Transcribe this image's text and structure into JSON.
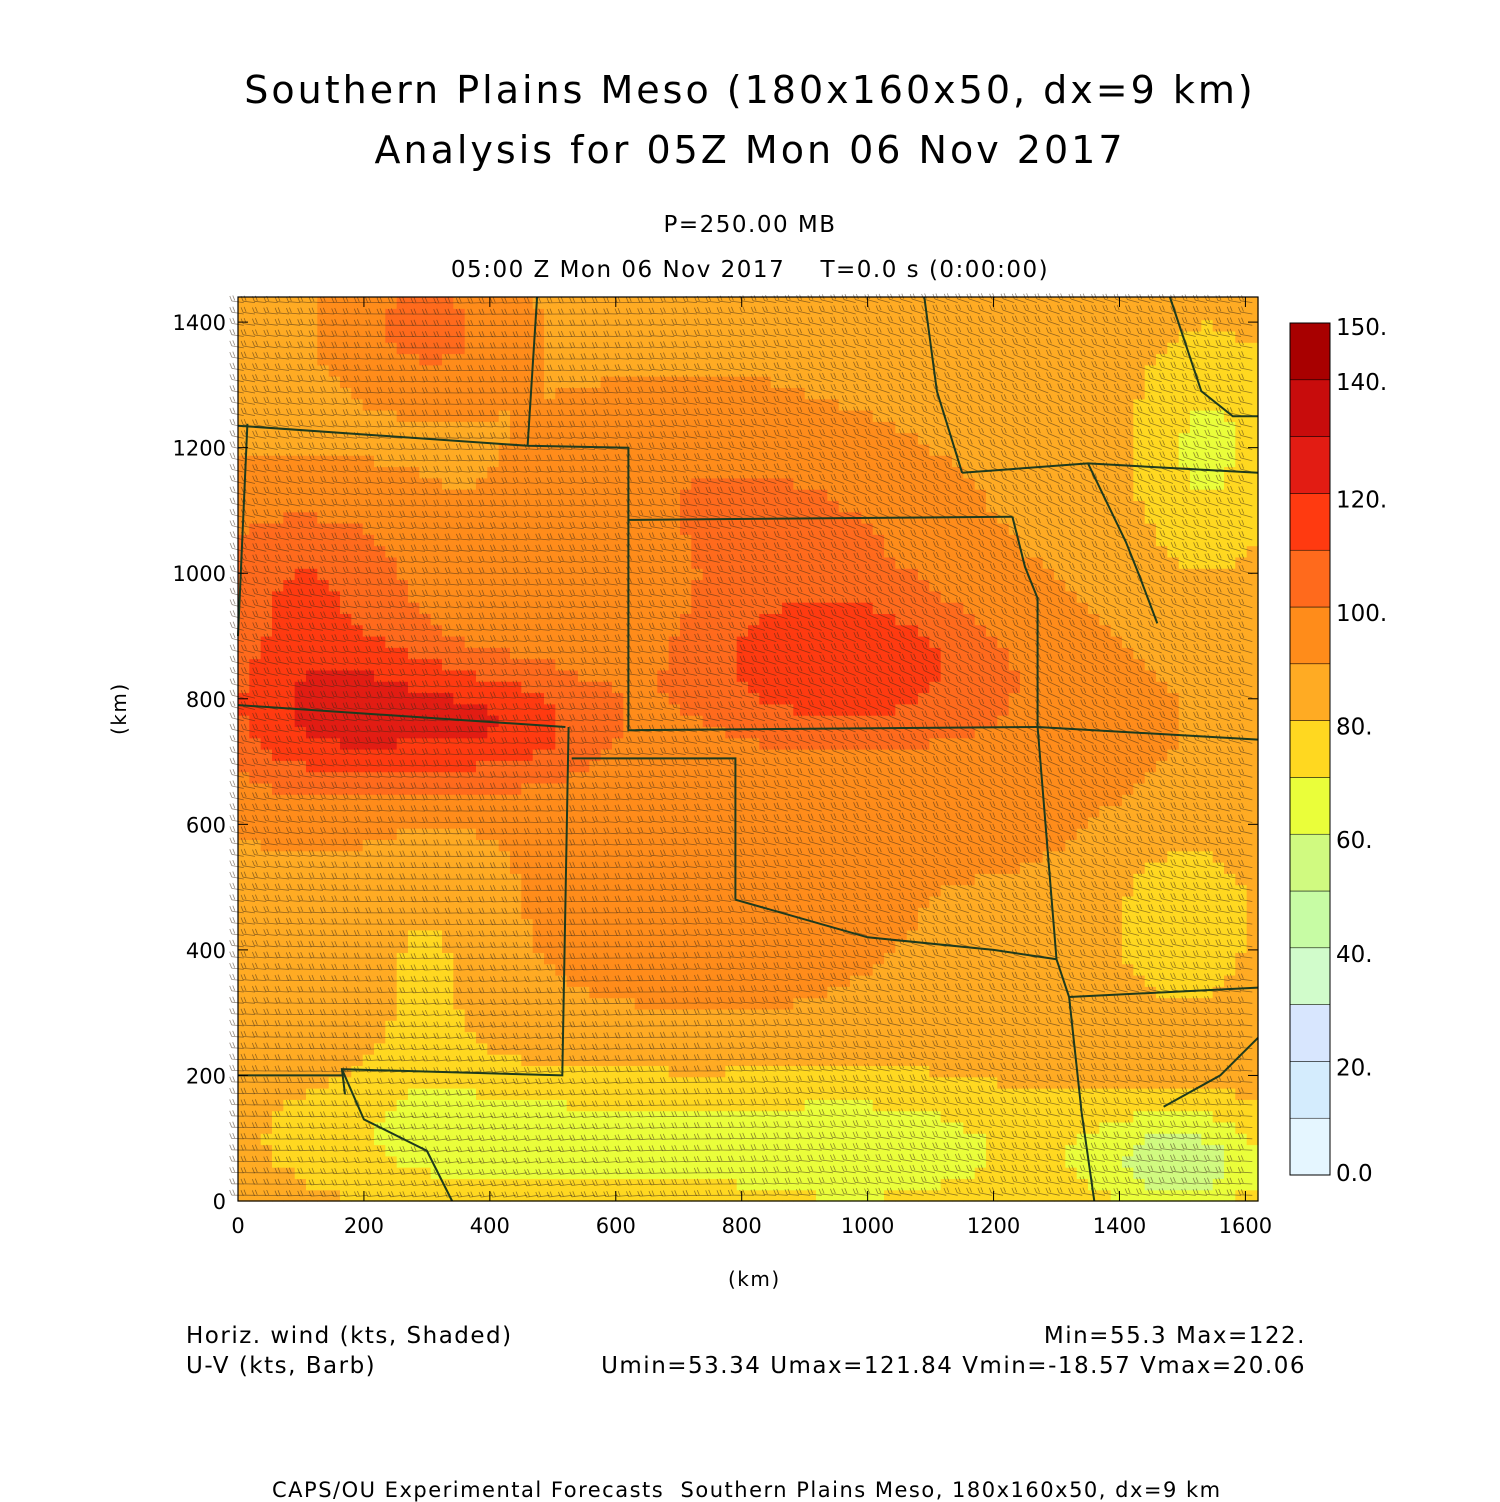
{
  "header": {
    "title_line1": "Southern Plains Meso (180x160x50, dx=9 km)",
    "title_line2": "Analysis for 05Z Mon 06 Nov 2017",
    "level": "P=250.00 MB",
    "time": "05:00 Z Mon 06 Nov 2017    T=0.0 s (0:00:00)"
  },
  "axes": {
    "x_label": "(km)",
    "y_label": "(km)",
    "x_ticks": [
      "0",
      "200",
      "400",
      "600",
      "800",
      "1000",
      "1200",
      "1400",
      "1600"
    ],
    "y_ticks": [
      "0",
      "200",
      "400",
      "600",
      "800",
      "1000",
      "1200",
      "1400"
    ],
    "x_range_km": [
      0,
      1620
    ],
    "y_range_km": [
      0,
      1440
    ]
  },
  "colorbar": {
    "labels": [
      "150.",
      "140.",
      "120.",
      "100.",
      "80.",
      "60.",
      "40.",
      "20.",
      "0.0"
    ],
    "label_values": [
      150,
      140,
      120,
      100,
      80,
      60,
      40,
      20,
      0
    ],
    "levels": [
      0,
      10,
      20,
      30,
      40,
      50,
      60,
      70,
      80,
      90,
      100,
      110,
      120,
      130,
      140,
      150
    ],
    "colors": [
      "#e5f6ff",
      "#d4ecfd",
      "#d8e6fe",
      "#d1fccb",
      "#c7fca4",
      "#d0fa80",
      "#eafe3a",
      "#ffd820",
      "#ffab23",
      "#ff8c1a",
      "#ff6a1c",
      "#ff3a10",
      "#e21c13",
      "#c80c0c",
      "#a80000"
    ]
  },
  "chart_data": {
    "type": "heatmap",
    "field": "Horizontal wind speed (kts) with U-V wind barbs",
    "x_range_km": [
      0,
      1620
    ],
    "y_range_km": [
      0,
      1440
    ],
    "min": 55.3,
    "max": 122,
    "u_range": [
      53.34,
      121.84
    ],
    "v_range": [
      -18.57,
      20.06
    ],
    "speed_centers": [
      {
        "x": 150,
        "y": 780,
        "speed": 122,
        "rx": 260,
        "ry": 170
      },
      {
        "x": 420,
        "y": 760,
        "speed": 113,
        "rx": 220,
        "ry": 130
      },
      {
        "x": 950,
        "y": 850,
        "speed": 118,
        "rx": 330,
        "ry": 160
      },
      {
        "x": 100,
        "y": 1000,
        "speed": 108,
        "rx": 240,
        "ry": 160
      },
      {
        "x": 300,
        "y": 1390,
        "speed": 104,
        "rx": 160,
        "ry": 120
      },
      {
        "x": 700,
        "y": 1150,
        "speed": 96,
        "rx": 300,
        "ry": 180
      },
      {
        "x": 900,
        "y": 1050,
        "speed": 100,
        "rx": 280,
        "ry": 170
      },
      {
        "x": 750,
        "y": 500,
        "speed": 98,
        "rx": 320,
        "ry": 230
      },
      {
        "x": 1300,
        "y": 700,
        "speed": 94,
        "rx": 300,
        "ry": 220
      },
      {
        "x": 400,
        "y": 100,
        "speed": 66,
        "rx": 450,
        "ry": 150
      },
      {
        "x": 1000,
        "y": 80,
        "speed": 64,
        "rx": 420,
        "ry": 160
      },
      {
        "x": 1500,
        "y": 60,
        "speed": 56,
        "rx": 200,
        "ry": 120
      },
      {
        "x": 1540,
        "y": 1200,
        "speed": 68,
        "rx": 160,
        "ry": 260
      },
      {
        "x": 300,
        "y": 350,
        "speed": 78,
        "rx": 120,
        "ry": 260
      },
      {
        "x": 1500,
        "y": 450,
        "speed": 74,
        "rx": 180,
        "ry": 220
      }
    ],
    "background_speed": 88
  },
  "map": {
    "state_boundaries": [
      [
        [
          0,
          1235
        ],
        [
          460,
          1203
        ],
        [
          620,
          1200
        ],
        [
          620,
          1085
        ],
        [
          1230,
          1090
        ]
      ],
      [
        [
          460,
          1203
        ],
        [
          475,
          1440
        ]
      ],
      [
        [
          620,
          1085
        ],
        [
          620,
          750
        ],
        [
          1270,
          755
        ]
      ],
      [
        [
          0,
          790
        ],
        [
          520,
          755
        ]
      ],
      [
        [
          525,
          755
        ],
        [
          515,
          200
        ],
        [
          165,
          210
        ],
        [
          170,
          170
        ]
      ],
      [
        [
          15,
          1238
        ],
        [
          0,
          900
        ]
      ],
      [
        [
          530,
          705
        ],
        [
          790,
          705
        ],
        [
          790,
          480
        ]
      ],
      [
        [
          790,
          480
        ],
        [
          1000,
          420
        ],
        [
          1200,
          400
        ],
        [
          1300,
          385
        ]
      ],
      [
        [
          1230,
          1090
        ],
        [
          1250,
          1010
        ],
        [
          1270,
          960
        ],
        [
          1270,
          755
        ]
      ],
      [
        [
          1270,
          755
        ],
        [
          1300,
          385
        ]
      ],
      [
        [
          1300,
          385
        ],
        [
          1320,
          325
        ],
        [
          1340,
          140
        ],
        [
          1360,
          0
        ]
      ],
      [
        [
          1320,
          325
        ],
        [
          1620,
          340
        ]
      ],
      [
        [
          1270,
          755
        ],
        [
          1620,
          735
        ]
      ],
      [
        [
          1150,
          1160
        ],
        [
          1350,
          1175
        ],
        [
          1620,
          1160
        ]
      ],
      [
        [
          1090,
          1440
        ],
        [
          1110,
          1290
        ],
        [
          1150,
          1160
        ]
      ],
      [
        [
          0,
          200
        ],
        [
          165,
          200
        ]
      ],
      [
        [
          165,
          210
        ],
        [
          200,
          130
        ],
        [
          300,
          80
        ],
        [
          340,
          0
        ]
      ],
      [
        [
          1350,
          1175
        ],
        [
          1410,
          1050
        ],
        [
          1430,
          1000
        ],
        [
          1460,
          920
        ]
      ],
      [
        [
          1480,
          1440
        ],
        [
          1530,
          1290
        ],
        [
          1580,
          1250
        ],
        [
          1620,
          1250
        ]
      ],
      [
        [
          1470,
          150
        ],
        [
          1560,
          200
        ],
        [
          1620,
          260
        ]
      ]
    ]
  },
  "legend": {
    "field_left_1": "Horiz. wind (kts, Shaded)",
    "field_left_2": "U-V (kts, Barb)",
    "stats_right_1": "Min=55.3 Max=122.",
    "stats_right_2": "Umin=53.34 Umax=121.84 Vmin=-18.57 Vmax=20.06"
  },
  "footer": {
    "text": "CAPS/OU Experimental Forecasts  Southern Plains Meso, 180x160x50, dx=9 km"
  }
}
